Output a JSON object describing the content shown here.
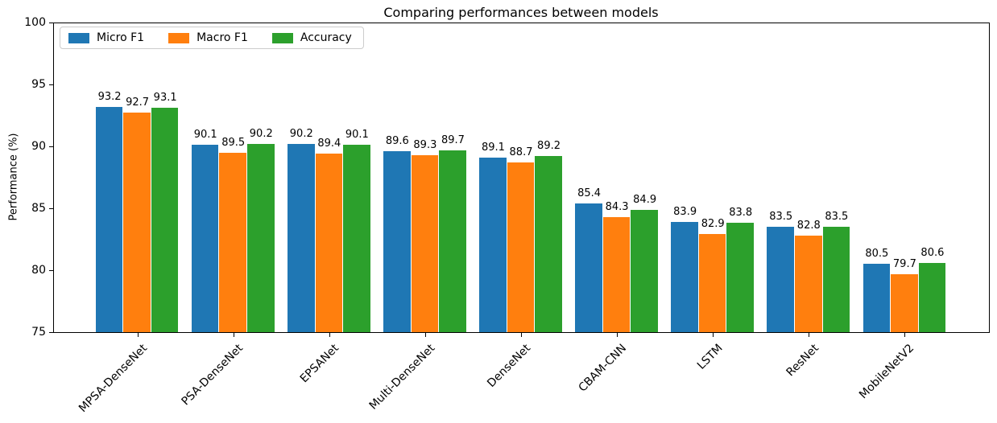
{
  "chart_data": {
    "type": "bar",
    "title": "Comparing performances between models",
    "xlabel": "",
    "ylabel": "Performance (%)",
    "ylim": [
      75,
      100
    ],
    "yticks": [
      75,
      80,
      85,
      90,
      95,
      100
    ],
    "grid": false,
    "legend_position": "upper left",
    "bar_value_labels": true,
    "x_tick_rotation": 45,
    "categories": [
      "MPSA-DenseNet",
      "PSA-DenseNet",
      "EPSANet",
      "Multi-DenseNet",
      "DenseNet",
      "CBAM-CNN",
      "LSTM",
      "ResNet",
      "MobileNetV2"
    ],
    "series": [
      {
        "name": "Micro F1",
        "color": "#1f77b4",
        "values": [
          93.2,
          90.1,
          90.2,
          89.6,
          89.1,
          85.4,
          83.9,
          83.5,
          80.5
        ]
      },
      {
        "name": "Macro F1",
        "color": "#ff7f0e",
        "values": [
          92.7,
          89.5,
          89.4,
          89.3,
          88.7,
          84.3,
          82.9,
          82.8,
          79.7
        ]
      },
      {
        "name": "Accuracy",
        "color": "#2ca02c",
        "values": [
          93.1,
          90.2,
          90.1,
          89.7,
          89.2,
          84.9,
          83.8,
          83.5,
          80.6
        ]
      }
    ]
  }
}
